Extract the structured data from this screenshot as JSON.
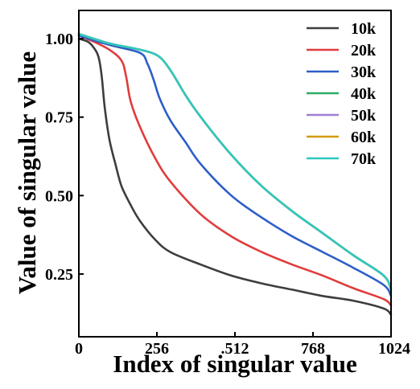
{
  "chart_data": {
    "type": "line",
    "title": "",
    "xlabel": "Index of singular value",
    "ylabel": "Value of singular value",
    "xlim": [
      0,
      1024
    ],
    "ylim": [
      0.05,
      1.09
    ],
    "x_ticks": [
      {
        "value": 0,
        "label": "0"
      },
      {
        "value": 256,
        "label": "256"
      },
      {
        "value": 512,
        "label": ".512"
      },
      {
        "value": 768,
        "label": "768"
      },
      {
        "value": 1024,
        "label": "1024"
      }
    ],
    "y_ticks": [
      {
        "value": 0.25,
        "label": "0.25"
      },
      {
        "value": 0.5,
        "label": "0.50"
      },
      {
        "value": 0.75,
        "label": "0.75"
      },
      {
        "value": 1.0,
        "label": "1.00"
      }
    ],
    "legend_position": "top-right",
    "series": [
      {
        "name": "10k",
        "color": "#3d3d3d",
        "x": [
          0,
          30,
          50,
          65,
          75,
          85,
          100,
          120,
          140,
          170,
          200,
          250,
          300,
          400,
          500,
          600,
          700,
          800,
          900,
          1000,
          1024
        ],
        "y": [
          1.0,
          0.99,
          0.97,
          0.94,
          0.88,
          0.78,
          0.68,
          0.6,
          0.53,
          0.47,
          0.42,
          0.36,
          0.32,
          0.28,
          0.245,
          0.22,
          0.2,
          0.18,
          0.165,
          0.14,
          0.12
        ]
      },
      {
        "name": "20k",
        "color": "#e03c3c",
        "x": [
          0,
          50,
          100,
          140,
          155,
          170,
          200,
          250,
          300,
          400,
          500,
          600,
          700,
          800,
          900,
          1000,
          1024
        ],
        "y": [
          1.01,
          0.99,
          0.965,
          0.93,
          0.88,
          0.8,
          0.72,
          0.62,
          0.545,
          0.44,
          0.37,
          0.32,
          0.28,
          0.245,
          0.205,
          0.17,
          0.15
        ]
      },
      {
        "name": "30k",
        "color": "#2c5ec8",
        "x": [
          0,
          100,
          200,
          225,
          245,
          265,
          300,
          350,
          400,
          500,
          600,
          700,
          800,
          900,
          1000,
          1024
        ],
        "y": [
          1.01,
          0.98,
          0.955,
          0.92,
          0.87,
          0.81,
          0.74,
          0.67,
          0.6,
          0.5,
          0.43,
          0.37,
          0.32,
          0.27,
          0.215,
          0.18
        ]
      },
      {
        "name": "40k",
        "color": "#2dad64",
        "x": [
          0,
          100,
          200,
          260,
          300,
          350,
          400,
          500,
          600,
          700,
          800,
          900,
          1000,
          1024
        ],
        "y": [
          1.015,
          0.985,
          0.965,
          0.945,
          0.9,
          0.82,
          0.75,
          0.63,
          0.53,
          0.45,
          0.38,
          0.31,
          0.245,
          0.2
        ]
      },
      {
        "name": "50k",
        "color": "#a07ed6",
        "x": [
          0,
          100,
          200,
          260,
          300,
          350,
          400,
          500,
          600,
          700,
          800,
          900,
          1000,
          1024
        ],
        "y": [
          1.015,
          0.985,
          0.965,
          0.945,
          0.9,
          0.82,
          0.75,
          0.63,
          0.53,
          0.45,
          0.38,
          0.31,
          0.245,
          0.2
        ]
      },
      {
        "name": "60k",
        "color": "#d49a06",
        "x": [
          0,
          100,
          200,
          260,
          300,
          350,
          400,
          500,
          600,
          700,
          800,
          900,
          1000,
          1024
        ],
        "y": [
          1.015,
          0.985,
          0.965,
          0.945,
          0.9,
          0.82,
          0.75,
          0.63,
          0.53,
          0.45,
          0.38,
          0.31,
          0.245,
          0.2
        ]
      },
      {
        "name": "70k",
        "color": "#2ec8c0",
        "x": [
          0,
          100,
          200,
          260,
          300,
          350,
          400,
          500,
          600,
          700,
          800,
          900,
          1000,
          1024
        ],
        "y": [
          1.015,
          0.985,
          0.965,
          0.945,
          0.9,
          0.82,
          0.75,
          0.63,
          0.53,
          0.45,
          0.38,
          0.31,
          0.245,
          0.2
        ]
      }
    ]
  }
}
